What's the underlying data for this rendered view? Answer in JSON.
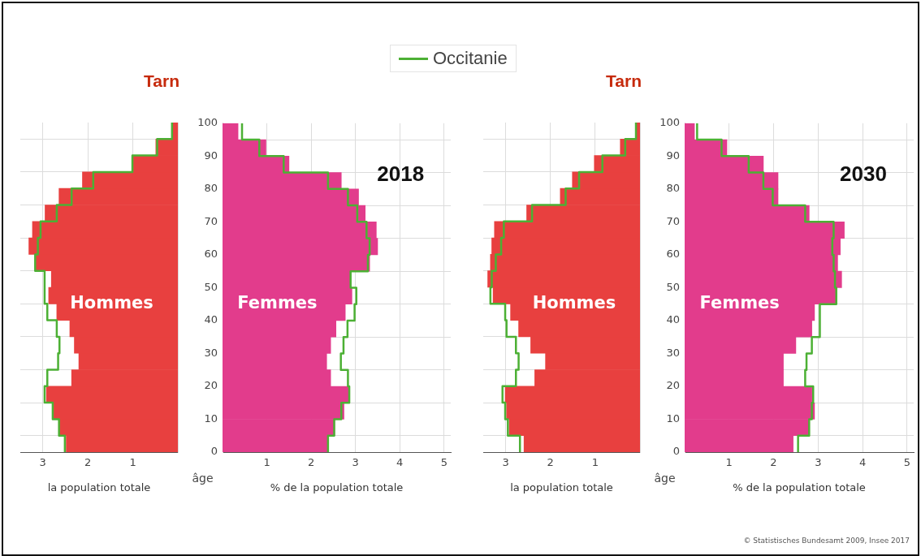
{
  "chart_data": [
    {
      "type": "histogram",
      "orientation": "horizontal",
      "title": "Tarn",
      "xlabel": "la population totale",
      "annotations": [
        "Hommes"
      ],
      "bins": [
        0,
        5,
        10,
        15,
        20,
        25,
        30,
        35,
        40,
        45,
        50,
        55,
        60,
        65,
        70,
        75,
        80,
        85,
        90,
        95,
        100
      ],
      "xlim": [
        3.5,
        0
      ],
      "xticks": [
        3,
        2,
        1
      ],
      "ylim": [
        0,
        100
      ],
      "yticks": [
        0,
        10,
        20,
        30,
        40,
        50,
        60,
        70,
        80,
        90,
        100
      ],
      "tick_labels": "x",
      "grid": true,
      "legend": "top",
      "series": [
        {
          "type": "histogram",
          "color": "#e8403f",
          "values": [
            2.48,
            2.63,
            2.78,
            2.92,
            2.36,
            2.2,
            2.3,
            2.4,
            2.69,
            2.87,
            2.81,
            3.17,
            3.31,
            3.23,
            2.95,
            2.64,
            2.12,
            1.01,
            0.49,
            0.13
          ]
        },
        {
          "type": "step",
          "name": "Occitanie",
          "color": "#4cb034",
          "x": [
            0,
            5,
            10,
            15,
            20,
            25,
            30,
            35,
            40,
            45,
            50,
            55,
            60,
            65,
            70,
            75,
            80,
            85,
            90,
            95,
            100
          ],
          "values": [
            2.51,
            2.64,
            2.78,
            2.96,
            2.9,
            2.66,
            2.63,
            2.69,
            2.9,
            2.96,
            2.96,
            3.17,
            3.11,
            3.05,
            2.69,
            2.36,
            1.88,
            1.01,
            0.46,
            0.13,
            0.13
          ]
        }
      ]
    },
    {
      "type": "histogram",
      "orientation": "horizontal",
      "xlabel": "% de la population totale",
      "ylabel": "âge",
      "annotations": [
        "Femmes",
        "2018"
      ],
      "bins": [
        0,
        5,
        10,
        15,
        20,
        25,
        30,
        35,
        40,
        45,
        50,
        55,
        60,
        65,
        70,
        75,
        80,
        85,
        90,
        95,
        100
      ],
      "xlim": [
        0,
        5.15
      ],
      "xticks": [
        1,
        2,
        3,
        4,
        5
      ],
      "ylim": [
        0,
        100
      ],
      "yticks": [
        0,
        10,
        20,
        30,
        40,
        50,
        60,
        70,
        80,
        90,
        100
      ],
      "grid": true,
      "series": [
        {
          "type": "histogram",
          "color": "#e23c8c",
          "values": [
            2.38,
            2.53,
            2.74,
            2.86,
            2.44,
            2.35,
            2.44,
            2.56,
            2.77,
            2.92,
            2.89,
            3.32,
            3.5,
            3.47,
            3.22,
            3.07,
            2.68,
            1.5,
            0.98,
            0.35
          ]
        },
        {
          "type": "step",
          "color": "#4cb034",
          "x": [
            0,
            5,
            10,
            15,
            20,
            25,
            30,
            35,
            40,
            45,
            50,
            55,
            60,
            65,
            70,
            75,
            80,
            85,
            90,
            95,
            100
          ],
          "values": [
            2.38,
            2.52,
            2.68,
            2.86,
            2.83,
            2.67,
            2.73,
            2.82,
            2.98,
            3.02,
            2.89,
            3.28,
            3.32,
            3.25,
            3.04,
            2.83,
            2.38,
            1.38,
            0.83,
            0.44,
            0.44
          ]
        }
      ]
    },
    {
      "type": "histogram",
      "orientation": "horizontal",
      "title": "Tarn",
      "xlabel": "la population totale",
      "annotations": [
        "Hommes"
      ],
      "bins": [
        0,
        5,
        10,
        15,
        20,
        25,
        30,
        35,
        40,
        45,
        50,
        55,
        60,
        65,
        70,
        75,
        80,
        85,
        90,
        95,
        100
      ],
      "xlim": [
        3.5,
        0
      ],
      "xticks": [
        3,
        2,
        1
      ],
      "ylim": [
        0,
        100
      ],
      "yticks": [
        0,
        10,
        20,
        30,
        40,
        50,
        60,
        70,
        80,
        90,
        100
      ],
      "tick_labels": "x",
      "grid": true,
      "series": [
        {
          "type": "histogram",
          "color": "#e8403f",
          "values": [
            2.59,
            2.92,
            2.98,
            3.01,
            2.35,
            2.11,
            2.44,
            2.71,
            2.89,
            3.28,
            3.4,
            3.34,
            3.31,
            3.25,
            2.53,
            1.78,
            1.51,
            1.02,
            0.44,
            0.09
          ]
        },
        {
          "type": "step",
          "color": "#4cb034",
          "x": [
            0,
            5,
            10,
            15,
            20,
            25,
            30,
            35,
            40,
            45,
            50,
            55,
            60,
            65,
            70,
            75,
            80,
            85,
            90,
            95,
            100
          ],
          "values": [
            2.68,
            2.95,
            3.01,
            3.07,
            2.77,
            2.71,
            2.77,
            2.98,
            3.01,
            3.34,
            3.31,
            3.22,
            3.1,
            3.04,
            2.41,
            1.66,
            1.36,
            0.84,
            0.33,
            0.09,
            0.09
          ]
        }
      ]
    },
    {
      "type": "histogram",
      "orientation": "horizontal",
      "xlabel": "% de la population totale",
      "ylabel": "âge",
      "annotations": [
        "Femmes",
        "2030",
        "© Statistisches Bundesamt 2009, Insee 2017"
      ],
      "bins": [
        0,
        5,
        10,
        15,
        20,
        25,
        30,
        35,
        40,
        45,
        50,
        55,
        60,
        65,
        70,
        75,
        80,
        85,
        90,
        95,
        100
      ],
      "xlim": [
        0,
        5.15
      ],
      "xticks": [
        1,
        2,
        3,
        4,
        5
      ],
      "ylim": [
        0,
        100
      ],
      "yticks": [
        0,
        10,
        20,
        30,
        40,
        50,
        60,
        70,
        80,
        90,
        100
      ],
      "grid": true,
      "series": [
        {
          "type": "histogram",
          "color": "#e23c8c",
          "values": [
            2.44,
            2.8,
            2.92,
            2.86,
            2.22,
            2.22,
            2.5,
            2.86,
            2.92,
            3.41,
            3.53,
            3.44,
            3.5,
            3.59,
            2.8,
            2.1,
            2.1,
            1.77,
            0.95,
            0.22
          ]
        },
        {
          "type": "step",
          "color": "#4cb034",
          "x": [
            0,
            5,
            10,
            15,
            20,
            25,
            30,
            35,
            40,
            45,
            50,
            55,
            60,
            65,
            70,
            75,
            80,
            85,
            90,
            95,
            100
          ],
          "values": [
            2.55,
            2.8,
            2.86,
            2.89,
            2.71,
            2.74,
            2.86,
            3.04,
            3.04,
            3.41,
            3.38,
            3.35,
            3.32,
            3.35,
            2.71,
            1.98,
            1.77,
            1.44,
            0.83,
            0.28,
            0.28
          ]
        }
      ]
    }
  ]
}
